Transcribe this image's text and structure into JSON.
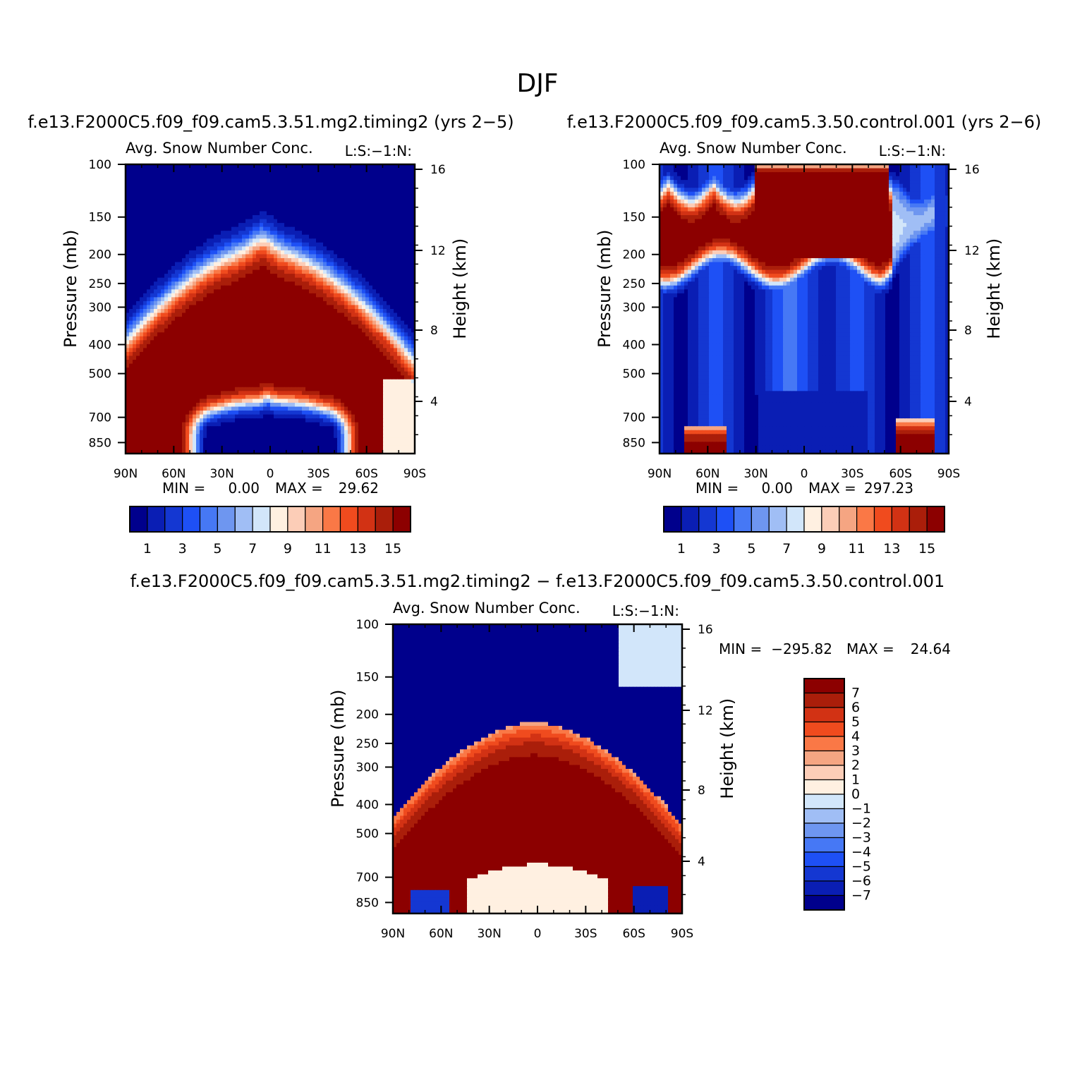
{
  "title": "DJF",
  "chart_data": [
    {
      "type": "heatmap",
      "case_title": "f.e13.F2000C5.f09_f09.cam5.3.51.mg2.timing2 (yrs 2−5)",
      "variable_title": "Avg. Snow Number Conc.",
      "units_label": "L:S:−1:N:",
      "ylabel": "Pressure (mb)",
      "ylabel_right": "Height (km)",
      "x_ticks": [
        "90N",
        "60N",
        "30N",
        "0",
        "30S",
        "60S",
        "90S"
      ],
      "y_ticks": [
        "100",
        "150",
        "200",
        "250",
        "300",
        "400",
        "500",
        "700",
        "850"
      ],
      "y2_ticks": [
        "16",
        "12",
        "8",
        "4"
      ],
      "xlim": [
        90,
        -90
      ],
      "ylim": [
        100,
        925
      ],
      "min_label": "MIN =",
      "min_value": "0.00",
      "max_label": "MAX =",
      "max_value": "29.62",
      "colorbar_labels": [
        "1",
        "3",
        "5",
        "7",
        "9",
        "11",
        "13",
        "15"
      ],
      "levels": [
        1,
        2,
        3,
        4,
        5,
        6,
        7,
        8,
        9,
        10,
        11,
        12,
        13,
        14,
        15
      ]
    },
    {
      "type": "heatmap",
      "case_title": "f.e13.F2000C5.f09_f09.cam5.3.50.control.001 (yrs 2−6)",
      "variable_title": "Avg. Snow Number Conc.",
      "units_label": "L:S:−1:N:",
      "ylabel": "Pressure (mb)",
      "ylabel_right": "Height (km)",
      "x_ticks": [
        "90N",
        "60N",
        "30N",
        "0",
        "30S",
        "60S",
        "90S"
      ],
      "y_ticks": [
        "100",
        "150",
        "200",
        "250",
        "300",
        "400",
        "500",
        "700",
        "850"
      ],
      "y2_ticks": [
        "16",
        "12",
        "8",
        "4"
      ],
      "xlim": [
        90,
        -90
      ],
      "ylim": [
        100,
        925
      ],
      "min_label": "MIN =",
      "min_value": "0.00",
      "max_label": "MAX =",
      "max_value": "297.23",
      "colorbar_labels": [
        "1",
        "3",
        "5",
        "7",
        "9",
        "11",
        "13",
        "15"
      ],
      "levels": [
        1,
        2,
        3,
        4,
        5,
        6,
        7,
        8,
        9,
        10,
        11,
        12,
        13,
        14,
        15
      ]
    },
    {
      "type": "heatmap",
      "case_title": "f.e13.F2000C5.f09_f09.cam5.3.51.mg2.timing2 − f.e13.F2000C5.f09_f09.cam5.3.50.control.001",
      "variable_title": "Avg. Snow Number Conc.",
      "units_label": "L:S:−1:N:",
      "ylabel": "Pressure (mb)",
      "ylabel_right": "Height (km)",
      "x_ticks": [
        "90N",
        "60N",
        "30N",
        "0",
        "30S",
        "60S",
        "90S"
      ],
      "y_ticks": [
        "100",
        "150",
        "200",
        "250",
        "300",
        "400",
        "500",
        "700",
        "850"
      ],
      "y2_ticks": [
        "16",
        "12",
        "8",
        "4"
      ],
      "xlim": [
        90,
        -90
      ],
      "ylim": [
        100,
        925
      ],
      "min_label": "MIN =",
      "min_value": "−295.82",
      "max_label": "MAX =",
      "max_value": "24.64",
      "colorbar_labels": [
        "7",
        "6",
        "5",
        "4",
        "3",
        "2",
        "1",
        "0",
        "−1",
        "−2",
        "−3",
        "−4",
        "−5",
        "−6",
        "−7"
      ],
      "levels": [
        -7,
        -6,
        -5,
        -4,
        -3,
        -2,
        -1,
        0,
        1,
        2,
        3,
        4,
        5,
        6,
        7
      ]
    }
  ],
  "colors": {
    "palette": [
      "#00008c",
      "#0a1eb4",
      "#1437d2",
      "#1e50f5",
      "#4678f5",
      "#6e96f0",
      "#a0bef5",
      "#d2e6fa",
      "#fff0e1",
      "#fccdb7",
      "#f5a582",
      "#fa7846",
      "#f04b1e",
      "#d23214",
      "#aa1e0a",
      "#8c0000"
    ]
  }
}
